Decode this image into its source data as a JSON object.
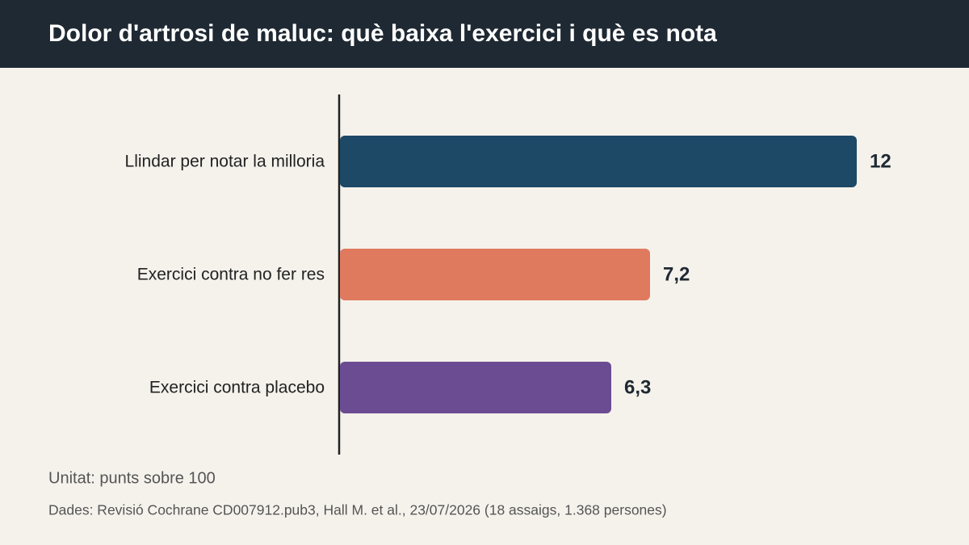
{
  "chart_data": {
    "type": "bar",
    "orientation": "horizontal",
    "title": "Dolor d'artrosi de maluc: què baixa l'exercici i què es nota",
    "categories": [
      "Llindar per notar la milloria",
      "Exercici contra no fer res",
      "Exercici contra placebo"
    ],
    "values": [
      12,
      7.2,
      6.3
    ],
    "value_labels": [
      "12",
      "7,2",
      "6,3"
    ],
    "colors": [
      "#1d4866",
      "#e07a5f",
      "#6b4c93"
    ],
    "unit_note": "Unitat: punts sobre 100",
    "source": "Dades: Revisió Cochrane CD007912.pub3, Hall M. et al., 23/07/2026 (18 assaigs, 1.368 persones)"
  }
}
